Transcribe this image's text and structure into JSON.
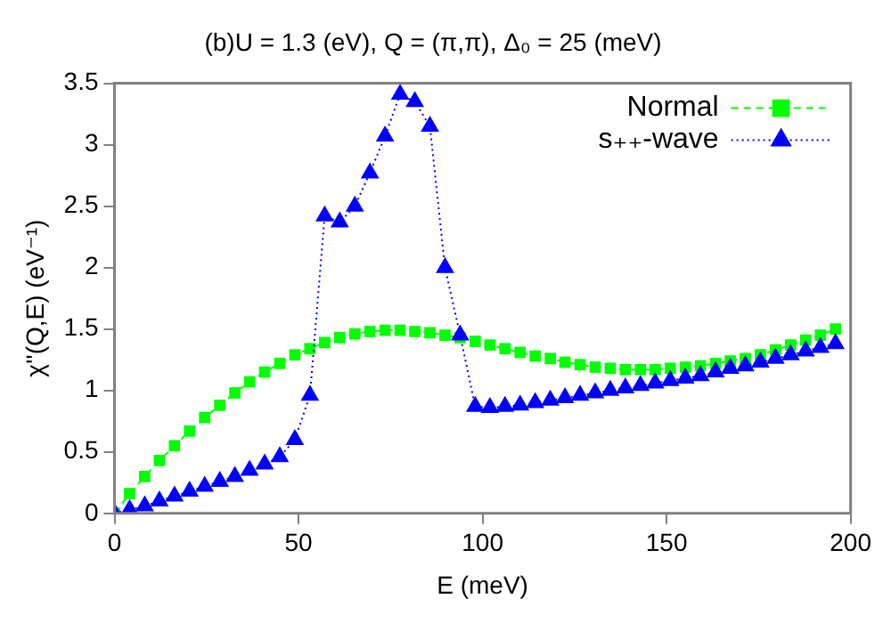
{
  "chart_data": {
    "type": "line",
    "title": "(b)U = 1.3 (eV), Q = (π,π), Δ₀ = 25 (meV)",
    "xlabel": "E (meV)",
    "ylabel": "χ''(Q,E) (eV⁻¹)",
    "xlim": [
      0,
      200
    ],
    "xticks": [
      0,
      50,
      100,
      150,
      200
    ],
    "ylim": [
      0,
      3.5
    ],
    "yticks": [
      0,
      0.5,
      1,
      1.5,
      2,
      2.5,
      3,
      3.5
    ],
    "grid": false,
    "legend": "top right",
    "x": [
      0,
      4.1,
      8.2,
      12.2,
      16.3,
      20.4,
      24.5,
      28.6,
      32.7,
      36.7,
      40.8,
      44.9,
      49,
      53.1,
      57.1,
      61.2,
      65.3,
      69.4,
      73.5,
      77.6,
      81.6,
      85.7,
      89.8,
      93.9,
      98,
      102,
      106.1,
      110.2,
      114.3,
      118.4,
      122.4,
      126.5,
      130.6,
      134.7,
      138.8,
      142.9,
      146.9,
      151,
      155.1,
      159.2,
      163.3,
      167.3,
      171.4,
      175.5,
      179.6,
      183.7,
      187.8,
      191.8,
      195.9
    ],
    "series": [
      {
        "name": "Normal",
        "color": "#00ff00",
        "marker": "square",
        "line_style": "dashed",
        "values": [
          0,
          0.16,
          0.3,
          0.43,
          0.55,
          0.67,
          0.78,
          0.88,
          0.98,
          1.07,
          1.15,
          1.22,
          1.29,
          1.34,
          1.39,
          1.43,
          1.46,
          1.48,
          1.49,
          1.49,
          1.48,
          1.47,
          1.45,
          1.43,
          1.4,
          1.37,
          1.34,
          1.31,
          1.28,
          1.26,
          1.23,
          1.21,
          1.19,
          1.18,
          1.17,
          1.17,
          1.17,
          1.18,
          1.19,
          1.2,
          1.22,
          1.24,
          1.26,
          1.29,
          1.33,
          1.37,
          1.41,
          1.45,
          1.5
        ]
      },
      {
        "name": "s₊₊-wave",
        "color": "#0000ff",
        "marker": "triangle",
        "line_style": "dotted",
        "values": [
          0,
          0.03,
          0.06,
          0.1,
          0.14,
          0.18,
          0.22,
          0.26,
          0.3,
          0.35,
          0.4,
          0.46,
          0.6,
          0.96,
          2.42,
          2.37,
          2.5,
          2.77,
          3.07,
          3.41,
          3.35,
          3.15,
          2,
          1.45,
          0.87,
          0.86,
          0.87,
          0.88,
          0.9,
          0.92,
          0.94,
          0.96,
          0.98,
          1,
          1.02,
          1.04,
          1.06,
          1.08,
          1.1,
          1.12,
          1.15,
          1.18,
          1.2,
          1.23,
          1.26,
          1.29,
          1.32,
          1.35,
          1.38
        ]
      }
    ]
  }
}
